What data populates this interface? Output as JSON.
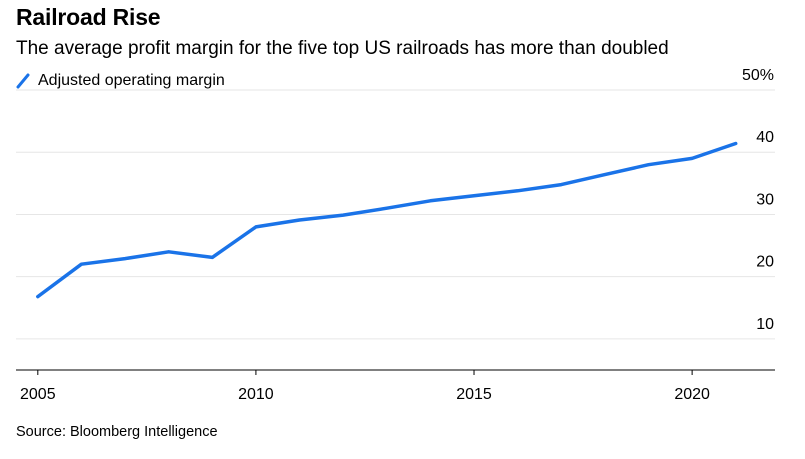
{
  "header": {
    "title": "Railroad Rise",
    "subtitle": "The average profit margin for the five top US railroads has more than doubled"
  },
  "footer": {
    "source": "Source: Bloomberg Intelligence"
  },
  "colors": {
    "series": "#1a73e8",
    "grid": "#e6e6e6",
    "axis": "#000000"
  },
  "chart_data": {
    "type": "line",
    "title": "Railroad Rise",
    "subtitle": "The average profit margin for the five top US railroads has more than doubled",
    "x": [
      2005,
      2006,
      2007,
      2008,
      2009,
      2010,
      2011,
      2012,
      2013,
      2014,
      2015,
      2016,
      2017,
      2018,
      2019,
      2020,
      2021
    ],
    "series": [
      {
        "name": "Adjusted operating margin",
        "values": [
          16.8,
          22.0,
          22.9,
          24.0,
          23.1,
          28.0,
          29.1,
          29.9,
          31.0,
          32.2,
          33.0,
          33.8,
          34.8,
          36.4,
          38.0,
          39.0,
          41.4
        ]
      }
    ],
    "xlim": [
      2004.5,
      2021.9
    ],
    "ylim": [
      5,
      50
    ],
    "x_ticks": [
      2005,
      2010,
      2015,
      2020
    ],
    "x_tick_labels": [
      "2005",
      "2010",
      "2015",
      "2020"
    ],
    "y_ticks": [
      10,
      20,
      30,
      40,
      50
    ],
    "y_tick_labels": [
      "10",
      "20",
      "30",
      "40",
      "50%"
    ],
    "grid": true,
    "legend_position": "top-left",
    "y_axis_side": "right"
  }
}
